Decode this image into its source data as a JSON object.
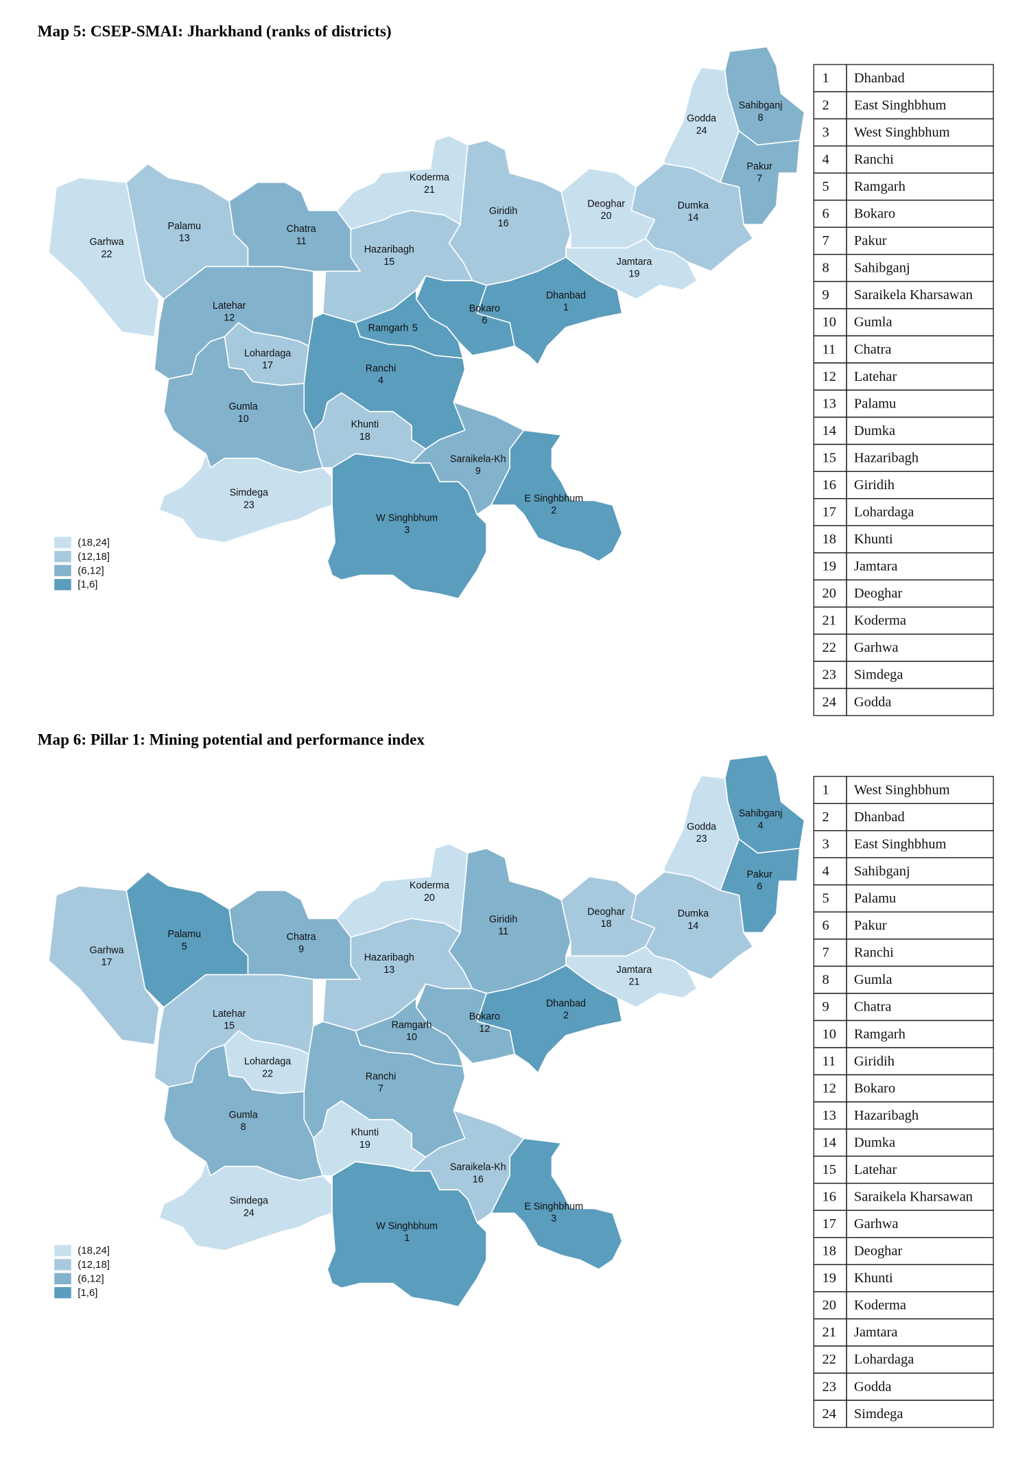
{
  "maps": [
    {
      "title": "Map 5: CSEP-SMAI: Jharkhand (ranks of districts)",
      "legend": [
        {
          "label": "(18,24]",
          "color": "#c8e0ee"
        },
        {
          "label": "(12,18]",
          "color": "#a7c9de"
        },
        {
          "label": "(6,12]",
          "color": "#83b2cc"
        },
        {
          "label": "[1,6]",
          "color": "#5b9dbd"
        }
      ],
      "districts": [
        {
          "name": "Garhwa",
          "rank": 22,
          "color": "#c8e0ee"
        },
        {
          "name": "Palamu",
          "rank": 13,
          "color": "#a7c9de"
        },
        {
          "name": "Chatra",
          "rank": 11,
          "color": "#83b2cc"
        },
        {
          "name": "Koderma",
          "rank": 21,
          "color": "#c8e0ee"
        },
        {
          "name": "Hazaribagh",
          "rank": 15,
          "color": "#a7c9de"
        },
        {
          "name": "Giridih",
          "rank": 16,
          "color": "#a7c9de"
        },
        {
          "name": "Deoghar",
          "rank": 20,
          "color": "#c8e0ee"
        },
        {
          "name": "Godda",
          "rank": 24,
          "color": "#c8e0ee"
        },
        {
          "name": "Sahibganj",
          "rank": 8,
          "color": "#83b2cc"
        },
        {
          "name": "Pakur",
          "rank": 7,
          "color": "#83b2cc"
        },
        {
          "name": "Dumka",
          "rank": 14,
          "color": "#a7c9de"
        },
        {
          "name": "Jamtara",
          "rank": 19,
          "color": "#c8e0ee"
        },
        {
          "name": "Dhanbad",
          "rank": 1,
          "color": "#5b9dbd"
        },
        {
          "name": "Bokaro",
          "rank": 6,
          "color": "#5b9dbd"
        },
        {
          "name": "Ramgarh",
          "rank": 5,
          "color": "#5b9dbd"
        },
        {
          "name": "Latehar",
          "rank": 12,
          "color": "#83b2cc"
        },
        {
          "name": "Lohardaga",
          "rank": 17,
          "color": "#a7c9de"
        },
        {
          "name": "Ranchi",
          "rank": 4,
          "color": "#5b9dbd"
        },
        {
          "name": "Gumla",
          "rank": 10,
          "color": "#83b2cc"
        },
        {
          "name": "Khunti",
          "rank": 18,
          "color": "#a7c9de"
        },
        {
          "name": "Saraikela-Kh",
          "rank": 9,
          "color": "#83b2cc"
        },
        {
          "name": "E Singhbhum",
          "rank": 2,
          "color": "#5b9dbd"
        },
        {
          "name": "Simdega",
          "rank": 23,
          "color": "#c8e0ee"
        },
        {
          "name": "W Singhbhum",
          "rank": 3,
          "color": "#5b9dbd"
        }
      ],
      "table": [
        [
          1,
          "Dhanbad"
        ],
        [
          2,
          "East Singhbhum"
        ],
        [
          3,
          "West Singhbhum"
        ],
        [
          4,
          "Ranchi"
        ],
        [
          5,
          "Ramgarh"
        ],
        [
          6,
          "Bokaro"
        ],
        [
          7,
          "Pakur"
        ],
        [
          8,
          "Sahibganj"
        ],
        [
          9,
          "Saraikela Kharsawan"
        ],
        [
          10,
          "Gumla"
        ],
        [
          11,
          "Chatra"
        ],
        [
          12,
          "Latehar"
        ],
        [
          13,
          "Palamu"
        ],
        [
          14,
          "Dumka"
        ],
        [
          15,
          "Hazaribagh"
        ],
        [
          16,
          "Giridih"
        ],
        [
          17,
          "Lohardaga"
        ],
        [
          18,
          "Khunti"
        ],
        [
          19,
          "Jamtara"
        ],
        [
          20,
          "Deoghar"
        ],
        [
          21,
          "Koderma"
        ],
        [
          22,
          "Garhwa"
        ],
        [
          23,
          "Simdega"
        ],
        [
          24,
          "Godda"
        ]
      ]
    },
    {
      "title": "Map 6: Pillar 1: Mining potential and performance index",
      "legend": [
        {
          "label": "(18,24]",
          "color": "#c8e0ee"
        },
        {
          "label": "(12,18]",
          "color": "#a7c9de"
        },
        {
          "label": "(6,12]",
          "color": "#83b2cc"
        },
        {
          "label": "[1,6]",
          "color": "#5b9dbd"
        }
      ],
      "districts": [
        {
          "name": "Garhwa",
          "rank": 17,
          "color": "#a7c9de"
        },
        {
          "name": "Palamu",
          "rank": 5,
          "color": "#5b9dbd"
        },
        {
          "name": "Chatra",
          "rank": 9,
          "color": "#83b2cc"
        },
        {
          "name": "Koderma",
          "rank": 20,
          "color": "#c8e0ee"
        },
        {
          "name": "Hazaribagh",
          "rank": 13,
          "color": "#a7c9de"
        },
        {
          "name": "Giridih",
          "rank": 11,
          "color": "#83b2cc"
        },
        {
          "name": "Deoghar",
          "rank": 18,
          "color": "#a7c9de"
        },
        {
          "name": "Godda",
          "rank": 23,
          "color": "#c8e0ee"
        },
        {
          "name": "Sahibganj",
          "rank": 4,
          "color": "#5b9dbd"
        },
        {
          "name": "Pakur",
          "rank": 6,
          "color": "#5b9dbd"
        },
        {
          "name": "Dumka",
          "rank": 14,
          "color": "#a7c9de"
        },
        {
          "name": "Jamtara",
          "rank": 21,
          "color": "#c8e0ee"
        },
        {
          "name": "Dhanbad",
          "rank": 2,
          "color": "#5b9dbd"
        },
        {
          "name": "Bokaro",
          "rank": 12,
          "color": "#83b2cc"
        },
        {
          "name": "Ramgarh",
          "rank": 10,
          "color": "#83b2cc"
        },
        {
          "name": "Latehar",
          "rank": 15,
          "color": "#a7c9de"
        },
        {
          "name": "Lohardaga",
          "rank": 22,
          "color": "#c8e0ee"
        },
        {
          "name": "Ranchi",
          "rank": 7,
          "color": "#83b2cc"
        },
        {
          "name": "Gumla",
          "rank": 8,
          "color": "#83b2cc"
        },
        {
          "name": "Khunti",
          "rank": 19,
          "color": "#c8e0ee"
        },
        {
          "name": "Saraikela-Kh",
          "rank": 16,
          "color": "#a7c9de"
        },
        {
          "name": "E Singhbhum",
          "rank": 3,
          "color": "#5b9dbd"
        },
        {
          "name": "Simdega",
          "rank": 24,
          "color": "#c8e0ee"
        },
        {
          "name": "W Singhbhum",
          "rank": 1,
          "color": "#5b9dbd"
        }
      ],
      "table": [
        [
          1,
          "West Singhbhum"
        ],
        [
          2,
          "Dhanbad"
        ],
        [
          3,
          "East Singhbhum"
        ],
        [
          4,
          "Sahibganj"
        ],
        [
          5,
          "Palamu"
        ],
        [
          6,
          "Pakur"
        ],
        [
          7,
          "Ranchi"
        ],
        [
          8,
          "Gumla"
        ],
        [
          9,
          "Chatra"
        ],
        [
          10,
          "Ramgarh"
        ],
        [
          11,
          "Giridih"
        ],
        [
          12,
          "Bokaro"
        ],
        [
          13,
          "Hazaribagh"
        ],
        [
          14,
          "Dumka"
        ],
        [
          15,
          "Latehar"
        ],
        [
          16,
          "Saraikela Kharsawan"
        ],
        [
          17,
          "Garhwa"
        ],
        [
          18,
          "Deoghar"
        ],
        [
          19,
          "Khunti"
        ],
        [
          20,
          "Koderma"
        ],
        [
          21,
          "Jamtara"
        ],
        [
          22,
          "Lohardaga"
        ],
        [
          23,
          "Godda"
        ],
        [
          24,
          "Simdega"
        ]
      ]
    }
  ]
}
